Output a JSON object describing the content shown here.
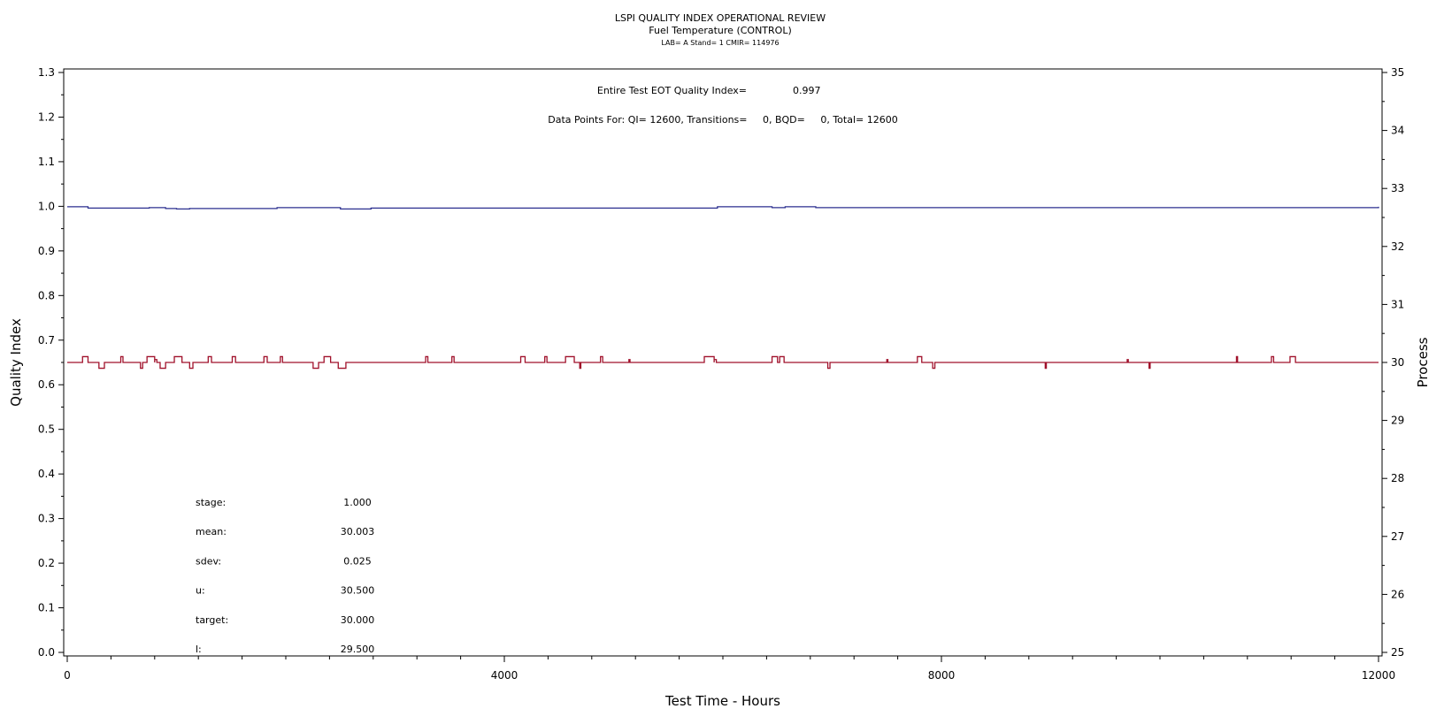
{
  "chart_data": {
    "type": "line",
    "title": "LSPI QUALITY INDEX OPERATIONAL REVIEW",
    "subtitle": "Fuel Temperature (CONTROL)",
    "subtitle2": "LAB= A Stand= 1 CMIR= 114976",
    "xlabel": "Test Time - Hours",
    "ylabel_left": "Quality Index",
    "ylabel_right": "Process",
    "xlim": [
      0,
      12000
    ],
    "ylim_left": [
      0.0,
      1.3
    ],
    "ylim_right": [
      25,
      35
    ],
    "x_ticks": [
      "0",
      "4000",
      "8000",
      "12000"
    ],
    "y_left_ticks": [
      "0.0",
      "0.1",
      "0.2",
      "0.3",
      "0.4",
      "0.5",
      "0.6",
      "0.7",
      "0.8",
      "0.9",
      "1.0",
      "1.1",
      "1.2",
      "1.3"
    ],
    "y_right_ticks": [
      "25",
      "26",
      "27",
      "28",
      "29",
      "30",
      "31",
      "32",
      "33",
      "34",
      "35"
    ],
    "annotations": {
      "eot_label": "Entire Test EOT Quality Index=",
      "eot_value": "0.997",
      "points_text": "Data Points For: QI= 12600, Transitions=     0, BQD=     0, Total= 12600"
    },
    "stats": [
      {
        "label": "stage:",
        "value": "1.000"
      },
      {
        "label": "mean:",
        "value": "30.003"
      },
      {
        "label": "sdev:",
        "value": "0.025"
      },
      {
        "label": "u:",
        "value": "30.500"
      },
      {
        "label": "target:",
        "value": "30.000"
      },
      {
        "label": "l:",
        "value": "29.500"
      }
    ],
    "series": [
      {
        "axis": "left",
        "color": "#2b2f8f",
        "step": true,
        "x": [
          0,
          150,
          190,
          750,
          900,
          1000,
          1120,
          1800,
          1920,
          2500,
          2780,
          5580,
          5950,
          6450,
          6570,
          6850,
          12000
        ],
        "values": [
          0.999,
          0.999,
          0.996,
          0.997,
          0.995,
          0.994,
          0.995,
          0.995,
          0.997,
          0.994,
          0.996,
          0.996,
          0.999,
          0.997,
          0.999,
          0.997,
          0.999
        ]
      },
      {
        "axis": "right",
        "color": "#a0102a",
        "step": true,
        "baseline": 30.0,
        "spikes": [
          [
            140,
            190,
            30.1
          ],
          [
            290,
            340,
            29.9
          ],
          [
            490,
            510,
            30.1
          ],
          [
            670,
            690,
            29.9
          ],
          [
            730,
            800,
            30.1
          ],
          [
            800,
            820,
            30.05
          ],
          [
            850,
            900,
            29.9
          ],
          [
            980,
            1050,
            30.1
          ],
          [
            1120,
            1150,
            29.9
          ],
          [
            1290,
            1320,
            30.1
          ],
          [
            1510,
            1540,
            30.1
          ],
          [
            1800,
            1830,
            30.1
          ],
          [
            1950,
            1970,
            30.1
          ],
          [
            2250,
            2300,
            29.9
          ],
          [
            2350,
            2410,
            30.1
          ],
          [
            2480,
            2550,
            29.9
          ],
          [
            3280,
            3300,
            30.1
          ],
          [
            3520,
            3540,
            30.1
          ],
          [
            4150,
            4190,
            30.1
          ],
          [
            4370,
            4390,
            30.1
          ],
          [
            4560,
            4640,
            30.1
          ],
          [
            4690,
            4700,
            29.9
          ],
          [
            4880,
            4900,
            30.1
          ],
          [
            5140,
            5150,
            30.05
          ],
          [
            5830,
            5920,
            30.1
          ],
          [
            5920,
            5940,
            30.05
          ],
          [
            6450,
            6500,
            30.1
          ],
          [
            6520,
            6560,
            30.1
          ],
          [
            6960,
            6980,
            29.9
          ],
          [
            7500,
            7510,
            30.05
          ],
          [
            7780,
            7820,
            30.1
          ],
          [
            7920,
            7940,
            29.9
          ],
          [
            8950,
            8960,
            29.9
          ],
          [
            9700,
            9710,
            30.05
          ],
          [
            9900,
            9910,
            29.9
          ],
          [
            10700,
            10710,
            30.1
          ],
          [
            11020,
            11040,
            30.1
          ],
          [
            11190,
            11240,
            30.1
          ]
        ]
      }
    ]
  }
}
